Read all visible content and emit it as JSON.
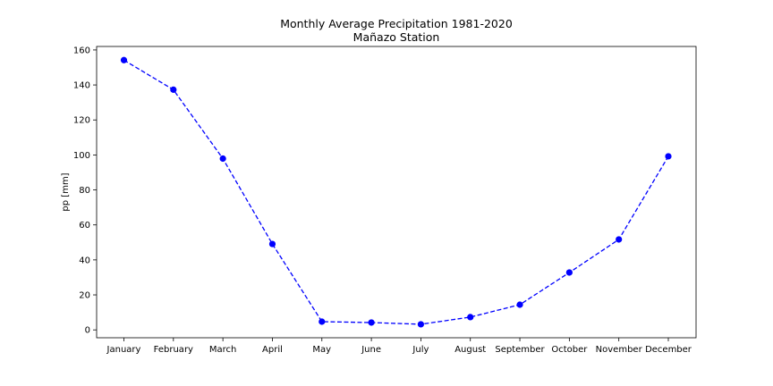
{
  "chart_data": {
    "type": "line",
    "title": "Monthly Average Precipitation 1981-2020",
    "subtitle": "Mañazo Station",
    "xlabel": "",
    "ylabel": "pp [mm]",
    "categories": [
      "January",
      "February",
      "March",
      "April",
      "May",
      "June",
      "July",
      "August",
      "September",
      "October",
      "November",
      "December"
    ],
    "series": [
      {
        "values": [
          154.2,
          137.3,
          97.9,
          49.1,
          4.7,
          4.2,
          3.2,
          7.3,
          14.4,
          32.8,
          51.7,
          99.2
        ],
        "color": "#0000ff",
        "line_style": "dashed",
        "marker": "circle"
      }
    ],
    "ylim": [
      -4.5,
      162
    ],
    "yticks": [
      0,
      20,
      40,
      60,
      80,
      100,
      120,
      140,
      160
    ],
    "grid": false
  }
}
